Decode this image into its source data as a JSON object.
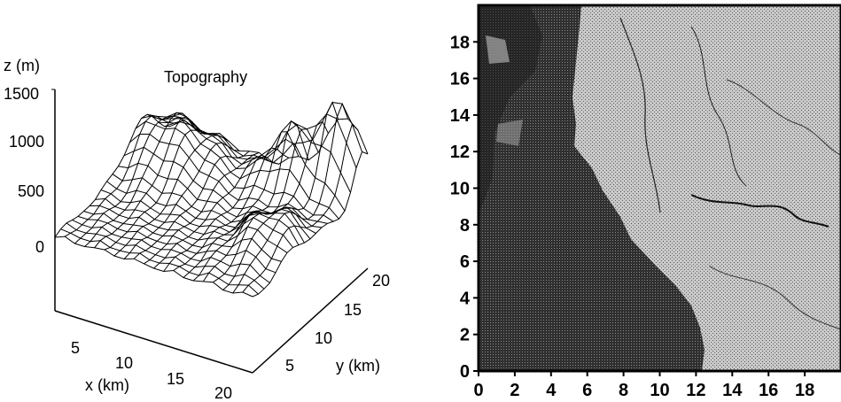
{
  "left_panel": {
    "title": "Topography",
    "z_axis": {
      "label": "z (m)",
      "ticks": [
        "1500",
        "1000",
        "500",
        "0"
      ]
    },
    "x_axis": {
      "label": "x (km)",
      "ticks": [
        "5",
        "10",
        "15",
        "20"
      ]
    },
    "y_axis": {
      "label": "y (km)",
      "ticks": [
        "5",
        "10",
        "15",
        "20"
      ]
    }
  },
  "right_panel": {
    "y_ticks": [
      "0",
      "2",
      "4",
      "6",
      "8",
      "10",
      "12",
      "14",
      "16",
      "18"
    ],
    "x_ticks": [
      "0",
      "2",
      "4",
      "6",
      "8",
      "10",
      "12",
      "14",
      "16",
      "18"
    ],
    "colors": {
      "water": "#3a3a3a",
      "land": "#b8b8b8",
      "frame": "#000000"
    }
  }
}
